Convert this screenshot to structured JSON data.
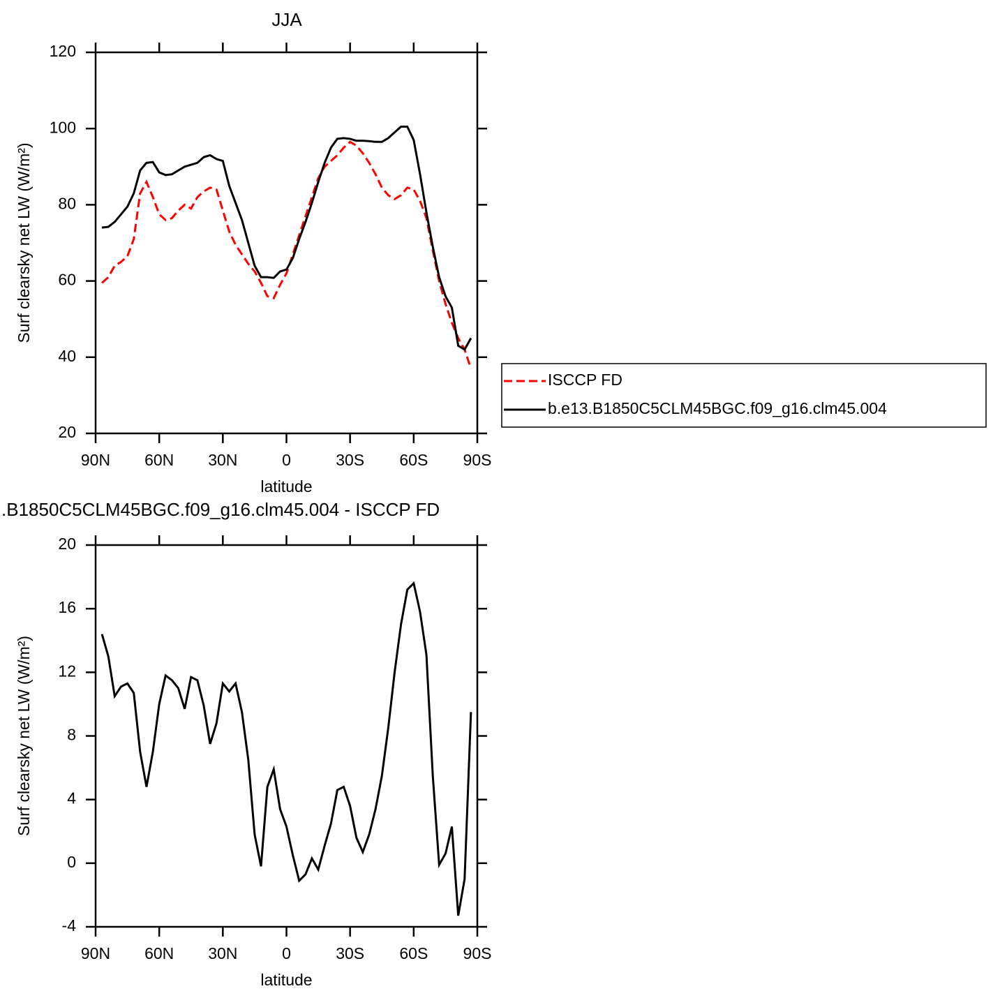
{
  "chart_data": [
    {
      "type": "line",
      "title": "JJA",
      "xlabel": "latitude",
      "ylabel": "Surf clearsky net LW (W/m²)",
      "x": [
        87,
        84,
        81,
        78,
        75,
        72,
        69,
        66,
        63,
        60,
        57,
        54,
        51,
        48,
        45,
        42,
        39,
        36,
        33,
        30,
        27,
        24,
        21,
        18,
        15,
        12,
        9,
        6,
        3,
        0,
        -3,
        -6,
        -9,
        -12,
        -15,
        -18,
        -21,
        -24,
        -27,
        -30,
        -33,
        -36,
        -39,
        -42,
        -45,
        -48,
        -51,
        -54,
        -57,
        -60,
        -63,
        -66,
        -69,
        -72,
        -75,
        -78,
        -81,
        -84,
        -87
      ],
      "xlim": [
        90,
        -90
      ],
      "xticks": [
        {
          "value": 90,
          "label": "90N"
        },
        {
          "value": 60,
          "label": "60N"
        },
        {
          "value": 30,
          "label": "30N"
        },
        0,
        {
          "value": -30,
          "label": "30S"
        },
        {
          "value": -60,
          "label": "60S"
        },
        {
          "value": -90,
          "label": "90S"
        }
      ],
      "ylim": [
        20,
        120
      ],
      "yticks": [
        20,
        40,
        60,
        80,
        100,
        120
      ],
      "legend": "right",
      "series": [
        {
          "name": "ISCCP FD",
          "color": "#ff0000",
          "style": "dashed",
          "values": [
            59.5,
            61,
            64,
            65,
            66.5,
            71,
            83,
            86,
            82,
            77.5,
            76,
            76.5,
            78.5,
            80,
            79,
            82,
            83.5,
            84.5,
            84,
            78.5,
            73,
            69.5,
            67,
            64.5,
            62.5,
            59.5,
            56,
            55.5,
            59,
            62,
            67,
            72,
            77,
            82,
            87,
            90,
            91.5,
            93,
            95,
            96.5,
            95.5,
            93.5,
            91,
            88,
            84.5,
            82.5,
            81.5,
            82.5,
            84.5,
            84,
            81,
            76.5,
            68,
            60,
            54,
            49,
            45,
            42,
            37
          ]
        },
        {
          "name": "b.e13.B1850C5CLM45BGC.f09_g16.clm45.004",
          "color": "#000000",
          "style": "solid",
          "values": [
            74,
            74.2,
            75.5,
            77.5,
            79.5,
            83,
            89,
            91,
            91.2,
            88.5,
            87.8,
            88,
            89,
            90,
            90.5,
            91,
            92.5,
            93,
            92,
            91.5,
            85,
            80.5,
            76,
            70,
            64,
            61,
            61,
            60.8,
            62.5,
            63,
            66,
            71,
            75.5,
            80.5,
            86,
            91,
            95,
            97.3,
            97.5,
            97.3,
            96.8,
            96.8,
            96.7,
            96.5,
            96.5,
            97.5,
            99,
            100.5,
            100.5,
            97,
            88,
            78,
            69,
            61,
            56,
            53,
            43,
            42,
            45
          ]
        }
      ]
    },
    {
      "type": "line",
      "title": ".B1850C5CLM45BGC.f09_g16.clm45.004 - ISCCP FD",
      "xlabel": "latitude",
      "ylabel": "Surf clearsky net LW (W/m²)",
      "x": [
        87,
        84,
        81,
        78,
        75,
        72,
        69,
        66,
        63,
        60,
        57,
        54,
        51,
        48,
        45,
        42,
        39,
        36,
        33,
        30,
        27,
        24,
        21,
        18,
        15,
        12,
        9,
        6,
        3,
        0,
        -3,
        -6,
        -9,
        -12,
        -15,
        -18,
        -21,
        -24,
        -27,
        -30,
        -33,
        -36,
        -39,
        -42,
        -45,
        -48,
        -51,
        -54,
        -57,
        -60,
        -63,
        -66,
        -69,
        -72,
        -75,
        -78,
        -81,
        -84,
        -87
      ],
      "xlim": [
        90,
        -90
      ],
      "xticks": [
        {
          "value": 90,
          "label": "90N"
        },
        {
          "value": 60,
          "label": "60N"
        },
        {
          "value": 30,
          "label": "30N"
        },
        0,
        {
          "value": -30,
          "label": "30S"
        },
        {
          "value": -60,
          "label": "60S"
        },
        {
          "value": -90,
          "label": "90S"
        }
      ],
      "ylim": [
        -4,
        20
      ],
      "yticks": [
        -4,
        0,
        4,
        8,
        12,
        16,
        20
      ],
      "series": [
        {
          "color": "#000000",
          "style": "solid",
          "values": [
            14.4,
            13,
            10.5,
            11.1,
            11.3,
            10.7,
            7,
            4.8,
            7,
            10,
            11.8,
            11.5,
            11,
            9.7,
            11.7,
            11.5,
            9.9,
            7.5,
            8.8,
            11.3,
            10.8,
            11.3,
            9.5,
            6.5,
            1.8,
            -0.2,
            4.8,
            5.9,
            3.4,
            2.3,
            0.5,
            -1.1,
            -0.7,
            0.3,
            -0.4,
            1.1,
            2.5,
            4.6,
            4.8,
            3.6,
            1.6,
            0.7,
            1.8,
            3.4,
            5.5,
            8.5,
            12,
            15,
            17.2,
            17.6,
            15.8,
            13.1,
            5.5,
            -0.1,
            0.6,
            2.3,
            -3.3,
            -1,
            9.5
          ]
        }
      ]
    }
  ]
}
